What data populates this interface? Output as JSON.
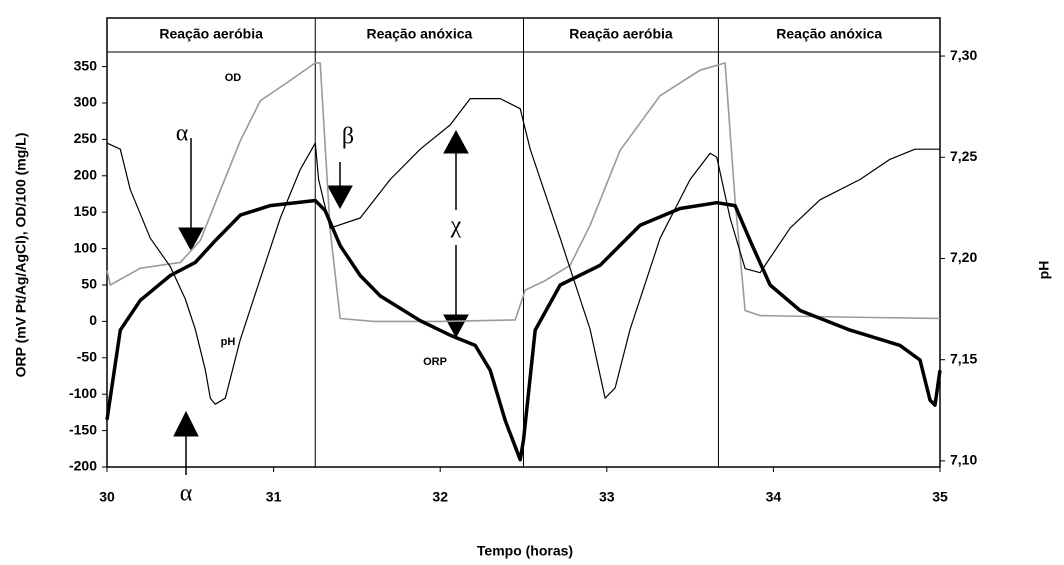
{
  "chart_data": {
    "type": "line",
    "phases": [
      {
        "label": "Reação aeróbia",
        "start": 30,
        "end": 31.25
      },
      {
        "label": "Reação anóxica",
        "start": 31.25,
        "end": 32.5
      },
      {
        "label": "Reação aeróbia",
        "start": 32.5,
        "end": 33.67
      },
      {
        "label": "Reação anóxica",
        "start": 33.67,
        "end": 35
      }
    ],
    "y_label": "ORP (mV Pt/Ag/AgCl), OD/100 (mg/L)",
    "y2_label": "pH",
    "x_label": "Tempo (horas)",
    "xlim": [
      30,
      35
    ],
    "xticks": [
      30,
      31,
      32,
      33,
      34,
      35
    ],
    "ylim": [
      -200,
      370
    ],
    "yticks": [
      -200,
      -150,
      -100,
      -50,
      0,
      50,
      100,
      150,
      200,
      250,
      300,
      350
    ],
    "y2lim": [
      7.097,
      7.302
    ],
    "y2ticks": [
      {
        "value": 7.1,
        "label": "7,10"
      },
      {
        "value": 7.15,
        "label": "7,15"
      },
      {
        "value": 7.2,
        "label": "7,20"
      },
      {
        "value": 7.25,
        "label": "7,25"
      },
      {
        "value": 7.3,
        "label": "7,30"
      }
    ],
    "annotations": [
      "OD",
      "pH",
      "ORP",
      "α",
      "α",
      "β",
      "χ"
    ],
    "series": [
      {
        "name": "OD",
        "color": "#9a9a9a",
        "width": 1.6,
        "x": [
          30.0,
          30.02,
          30.2,
          30.44,
          30.56,
          30.68,
          30.8,
          30.92,
          31.1,
          31.25,
          31.28,
          31.34,
          31.4,
          31.6,
          32.0,
          32.45,
          32.51,
          32.63,
          32.78,
          32.9,
          33.08,
          33.32,
          33.56,
          33.71,
          33.77,
          33.83,
          33.92,
          34.4,
          35.0
        ],
        "values": [
          70,
          50,
          73,
          81,
          111,
          180,
          248,
          303,
          331,
          355,
          355,
          125,
          4,
          0,
          0,
          2,
          43,
          56,
          77,
          132,
          235,
          310,
          345,
          355,
          166,
          15,
          8,
          6,
          4
        ]
      },
      {
        "name": "ORP",
        "color": "#000000",
        "width": 3.5,
        "x": [
          30.0,
          30.08,
          30.2,
          30.38,
          30.53,
          30.65,
          30.8,
          30.98,
          31.25,
          31.31,
          31.4,
          31.52,
          31.64,
          31.88,
          32.06,
          32.21,
          32.3,
          32.39,
          32.48,
          32.5,
          32.57,
          32.72,
          32.96,
          33.2,
          33.44,
          33.66,
          33.77,
          33.86,
          33.98,
          34.16,
          34.46,
          34.76,
          34.88,
          34.94,
          34.97,
          35.0
        ],
        "values": [
          -135,
          -12,
          29,
          63,
          81,
          111,
          146,
          159,
          166,
          152,
          104,
          63,
          35,
          1,
          -19,
          -33,
          -67,
          -136,
          -190,
          -163,
          -12,
          50,
          77,
          132,
          155,
          163,
          159,
          111,
          50,
          15,
          -12,
          -33,
          -53,
          -108,
          -115,
          -67
        ]
      },
      {
        "name": "pH",
        "color": "#000000",
        "width": 1.2,
        "axis": "y2",
        "x": [
          30.0,
          30.08,
          30.14,
          30.26,
          30.38,
          30.47,
          30.53,
          30.59,
          30.62,
          30.65,
          30.71,
          30.8,
          30.92,
          31.04,
          31.16,
          31.25,
          31.27,
          31.34,
          31.52,
          31.7,
          31.88,
          32.06,
          32.18,
          32.36,
          32.48,
          32.54,
          32.72,
          32.9,
          32.99,
          33.05,
          33.14,
          33.32,
          33.5,
          33.62,
          33.66,
          33.74,
          33.83,
          33.92,
          34.1,
          34.28,
          34.52,
          34.7,
          34.85,
          35.0
        ],
        "values": [
          7.257,
          7.254,
          7.234,
          7.21,
          7.196,
          7.18,
          7.165,
          7.145,
          7.131,
          7.128,
          7.131,
          7.16,
          7.19,
          7.22,
          7.244,
          7.257,
          7.239,
          7.215,
          7.22,
          7.239,
          7.254,
          7.266,
          7.279,
          7.279,
          7.274,
          7.254,
          7.21,
          7.165,
          7.131,
          7.136,
          7.165,
          7.21,
          7.239,
          7.252,
          7.25,
          7.22,
          7.195,
          7.193,
          7.215,
          7.229,
          7.239,
          7.249,
          7.254,
          7.254
        ]
      }
    ]
  }
}
